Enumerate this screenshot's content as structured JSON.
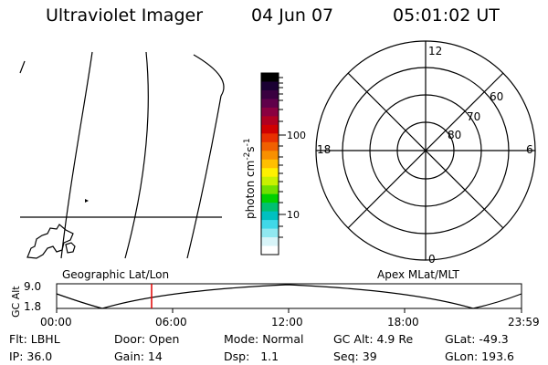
{
  "header": {
    "instrument": "Ultraviolet Imager",
    "date": "04 Jun 07",
    "time": "05:01:02 UT"
  },
  "colorbar": {
    "label": "photon cm",
    "label_exp1": "-2",
    "label_mid": "s",
    "label_exp2": "-1",
    "ticks": [
      "100",
      "10"
    ],
    "colors": [
      "#000000",
      "#1a0033",
      "#3a0040",
      "#60004a",
      "#8a0040",
      "#b00020",
      "#d00000",
      "#e83000",
      "#f06000",
      "#f89000",
      "#ffbf00",
      "#fff000",
      "#c8f000",
      "#70e000",
      "#00d000",
      "#00c070",
      "#00c0c0",
      "#40d8e8",
      "#90e8f0",
      "#d8f4f8",
      "#ffffff"
    ]
  },
  "polar": {
    "mlt_labels": [
      "12",
      "6",
      "0",
      "18"
    ],
    "lat_labels": [
      "60",
      "70",
      "80"
    ]
  },
  "timeline": {
    "axis_title": "GC Alt",
    "y_ticks": [
      "9.0",
      "1.8"
    ],
    "left_title": "Geographic Lat/Lon",
    "right_title": "Apex MLat/MLT",
    "x_ticks": [
      "00:00",
      "06:00",
      "12:00",
      "18:00",
      "23:59"
    ]
  },
  "info": {
    "flt": "Flt: LBHL",
    "ip": "IP: 36.0",
    "door": "Door: Open",
    "gain": "Gain: 14",
    "mode": "Mode: Normal",
    "dsp": "Dsp:   1.1",
    "gcalt": "GC Alt: 4.9 Re",
    "seq": "Seq: 39",
    "glat": "GLat: -49.3",
    "glon": "GLon: 193.6"
  }
}
